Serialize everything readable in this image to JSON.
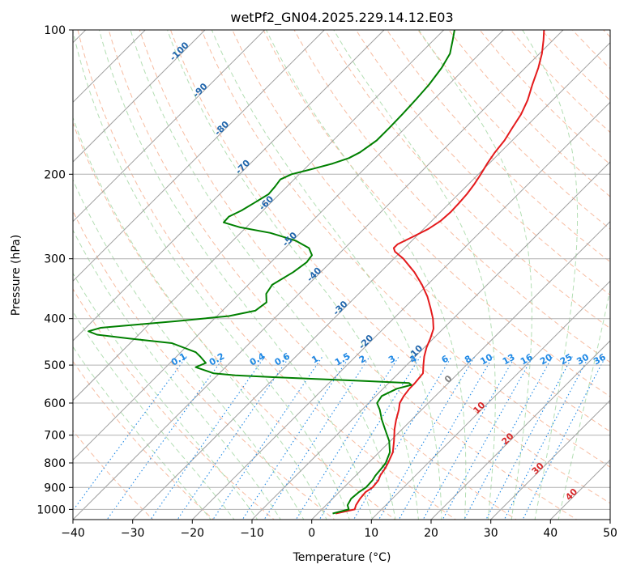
{
  "chart_data": {
    "type": "line",
    "title": "wetPf2_GN04.2025.229.14.12.E03",
    "xlabel": "Temperature (°C)",
    "ylabel": "Pressure (hPa)",
    "xlim": [
      -40,
      50
    ],
    "ylim": [
      1050,
      100
    ],
    "y_scale": "log",
    "skew_deg": 45,
    "x_ticks": [
      -40,
      -30,
      -20,
      -10,
      0,
      10,
      20,
      30,
      40,
      50
    ],
    "y_ticks": [
      100,
      200,
      300,
      400,
      500,
      600,
      700,
      800,
      900,
      1000
    ],
    "grid": true,
    "background_lines": {
      "isotherms": {
        "color": "#a0a0a0"
      },
      "dry_adiabats": {
        "color": "#f4a582"
      },
      "moist_adiabats": {
        "color": "#a6d8a6"
      },
      "mixing_ratio_lines": {
        "color": "#1e88e5"
      }
    },
    "isotherm_labels": [
      {
        "value": "-100",
        "p": 112
      },
      {
        "value": "-90",
        "p": 135
      },
      {
        "value": "-80",
        "p": 162
      },
      {
        "value": "-70",
        "p": 195
      },
      {
        "value": "-60",
        "p": 232
      },
      {
        "value": "-50",
        "p": 276
      },
      {
        "value": "-40",
        "p": 327
      },
      {
        "value": "-30",
        "p": 384
      },
      {
        "value": "-20",
        "p": 452
      },
      {
        "value": "-10",
        "p": 475
      },
      {
        "value": "0",
        "p": 540
      },
      {
        "value": "10",
        "p": 620
      },
      {
        "value": "20",
        "p": 720
      },
      {
        "value": "30",
        "p": 830
      },
      {
        "value": "40",
        "p": 940
      }
    ],
    "mixing_ratio_labels": [
      "0.1",
      "0.2",
      "0.4",
      "0.6",
      "1",
      "1.5",
      "2",
      "3",
      "4",
      "6",
      "8",
      "10",
      "13",
      "16",
      "20",
      "25",
      "30",
      "36"
    ],
    "mixing_ratio_label_pressure": 500,
    "series": [
      {
        "color": "#e41a1c",
        "points": [
          [
            1020,
            3.0
          ],
          [
            1000,
            5.5
          ],
          [
            980,
            5.0
          ],
          [
            950,
            4.6
          ],
          [
            920,
            4.4
          ],
          [
            900,
            4.8
          ],
          [
            870,
            4.6
          ],
          [
            850,
            4.1
          ],
          [
            820,
            3.7
          ],
          [
            800,
            3.3
          ],
          [
            760,
            2.3
          ],
          [
            720,
            0.6
          ],
          [
            680,
            -1.3
          ],
          [
            650,
            -2.6
          ],
          [
            620,
            -3.8
          ],
          [
            600,
            -4.8
          ],
          [
            580,
            -5.3
          ],
          [
            560,
            -5.6
          ],
          [
            545,
            -5.6
          ],
          [
            520,
            -5.9
          ],
          [
            500,
            -7.2
          ],
          [
            480,
            -8.5
          ],
          [
            460,
            -9.6
          ],
          [
            440,
            -10.5
          ],
          [
            420,
            -11.6
          ],
          [
            400,
            -13.4
          ],
          [
            380,
            -15.6
          ],
          [
            360,
            -18.0
          ],
          [
            340,
            -20.9
          ],
          [
            320,
            -24.3
          ],
          [
            300,
            -28.4
          ],
          [
            290,
            -31.0
          ],
          [
            285,
            -31.8
          ],
          [
            280,
            -31.8
          ],
          [
            270,
            -30.5
          ],
          [
            260,
            -29.2
          ],
          [
            250,
            -28.5
          ],
          [
            240,
            -28.3
          ],
          [
            230,
            -28.4
          ],
          [
            220,
            -28.6
          ],
          [
            210,
            -29.0
          ],
          [
            200,
            -29.6
          ],
          [
            190,
            -30.3
          ],
          [
            180,
            -30.9
          ],
          [
            170,
            -31.3
          ],
          [
            160,
            -32.1
          ],
          [
            150,
            -32.9
          ],
          [
            140,
            -34.2
          ],
          [
            130,
            -36.0
          ],
          [
            120,
            -37.8
          ],
          [
            112,
            -39.6
          ],
          [
            105,
            -41.6
          ],
          [
            100,
            -43.2
          ]
        ]
      },
      {
        "color": "#008000",
        "points": [
          [
            1020,
            2.5
          ],
          [
            1000,
            4.5
          ],
          [
            980,
            3.6
          ],
          [
            950,
            3.1
          ],
          [
            920,
            3.3
          ],
          [
            900,
            3.7
          ],
          [
            870,
            3.6
          ],
          [
            850,
            3.3
          ],
          [
            820,
            3.1
          ],
          [
            800,
            2.9
          ],
          [
            760,
            1.8
          ],
          [
            720,
            -0.2
          ],
          [
            680,
            -2.9
          ],
          [
            650,
            -5.0
          ],
          [
            620,
            -7.0
          ],
          [
            600,
            -8.6
          ],
          [
            580,
            -9.0
          ],
          [
            560,
            -7.7
          ],
          [
            550,
            -5.9
          ],
          [
            545,
            -6.6
          ],
          [
            540,
            -14.0
          ],
          [
            535,
            -22.0
          ],
          [
            530,
            -30.0
          ],
          [
            525,
            -37.0
          ],
          [
            520,
            -41.0
          ],
          [
            505,
            -45.0
          ],
          [
            495,
            -44.0
          ],
          [
            480,
            -46.0
          ],
          [
            470,
            -47.5
          ],
          [
            450,
            -53.0
          ],
          [
            440,
            -61.0
          ],
          [
            432,
            -67.0
          ],
          [
            425,
            -69.0
          ],
          [
            418,
            -67.5
          ],
          [
            405,
            -56.0
          ],
          [
            395,
            -48.0
          ],
          [
            385,
            -44.5
          ],
          [
            370,
            -44.0
          ],
          [
            355,
            -45.5
          ],
          [
            340,
            -46.0
          ],
          [
            320,
            -44.6
          ],
          [
            305,
            -44.0
          ],
          [
            295,
            -44.3
          ],
          [
            285,
            -46.0
          ],
          [
            275,
            -49.5
          ],
          [
            265,
            -55.0
          ],
          [
            258,
            -61.0
          ],
          [
            252,
            -64.6
          ],
          [
            245,
            -64.7
          ],
          [
            238,
            -63.6
          ],
          [
            230,
            -62.8
          ],
          [
            220,
            -61.8
          ],
          [
            212,
            -62.0
          ],
          [
            205,
            -62.3
          ],
          [
            200,
            -61.3
          ],
          [
            195,
            -58.7
          ],
          [
            190,
            -56.2
          ],
          [
            185,
            -54.4
          ],
          [
            180,
            -53.5
          ],
          [
            170,
            -52.7
          ],
          [
            160,
            -52.7
          ],
          [
            150,
            -52.8
          ],
          [
            140,
            -53.0
          ],
          [
            130,
            -53.3
          ],
          [
            120,
            -54.0
          ],
          [
            112,
            -55.0
          ],
          [
            105,
            -56.8
          ],
          [
            100,
            -58.2
          ]
        ]
      }
    ]
  }
}
